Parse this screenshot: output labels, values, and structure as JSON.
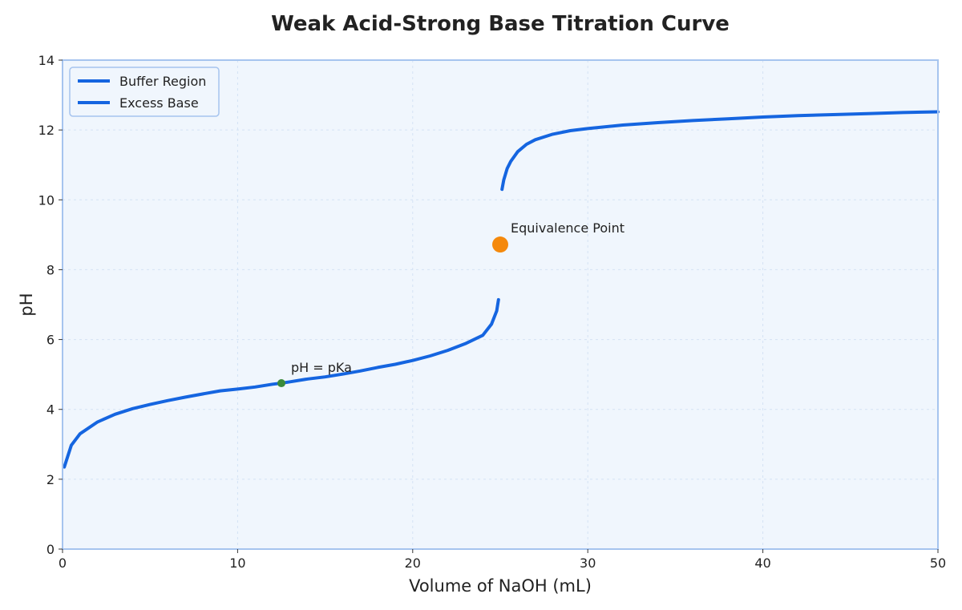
{
  "chart_data": {
    "type": "line",
    "title": "Weak Acid-Strong Base Titration Curve",
    "xlabel": "Volume of NaOH (mL)",
    "ylabel": "pH",
    "xlim": [
      0,
      50
    ],
    "ylim": [
      0,
      14
    ],
    "x_ticks": [
      0,
      10,
      20,
      30,
      40,
      50
    ],
    "y_ticks": [
      0,
      2,
      4,
      6,
      8,
      10,
      12,
      14
    ],
    "grid": true,
    "legend_position": "top-left",
    "colors": {
      "series": "#1565e0",
      "plot_background": "#f0f6fd",
      "frame": "#a6c4ef",
      "grid": "#d4e2f4",
      "equivalence_marker": "#f5890c",
      "half_equivalence_marker": "#3a8a3a"
    },
    "series": [
      {
        "name": "Buffer Region",
        "x": [
          0.1,
          0.5,
          1,
          2,
          3,
          4,
          5,
          6,
          7,
          8,
          9,
          10,
          11,
          12,
          12.5,
          13,
          14,
          15,
          16,
          17,
          18,
          19,
          20,
          21,
          22,
          23,
          24,
          24.5,
          24.8,
          24.9
        ],
        "y": [
          2.35,
          2.97,
          3.3,
          3.64,
          3.86,
          4.02,
          4.14,
          4.25,
          4.35,
          4.44,
          4.53,
          4.58,
          4.64,
          4.72,
          4.75,
          4.79,
          4.87,
          4.93,
          5.01,
          5.1,
          5.2,
          5.29,
          5.4,
          5.53,
          5.69,
          5.88,
          6.12,
          6.44,
          6.82,
          7.14
        ]
      },
      {
        "name": "Excess Base",
        "x": [
          25.1,
          25.2,
          25.4,
          25.6,
          26,
          26.5,
          27,
          28,
          29,
          30,
          32,
          34,
          36,
          38,
          40,
          42,
          44,
          46,
          48,
          50
        ],
        "y": [
          10.3,
          10.57,
          10.9,
          11.1,
          11.38,
          11.59,
          11.72,
          11.88,
          11.98,
          12.04,
          12.14,
          12.21,
          12.27,
          12.32,
          12.37,
          12.41,
          12.44,
          12.47,
          12.5,
          12.52
        ]
      }
    ],
    "points": [
      {
        "label": "Equivalence Point",
        "x": 25,
        "y": 8.72
      },
      {
        "label": "pH = pKa",
        "x": 12.5,
        "y": 4.75
      }
    ]
  }
}
